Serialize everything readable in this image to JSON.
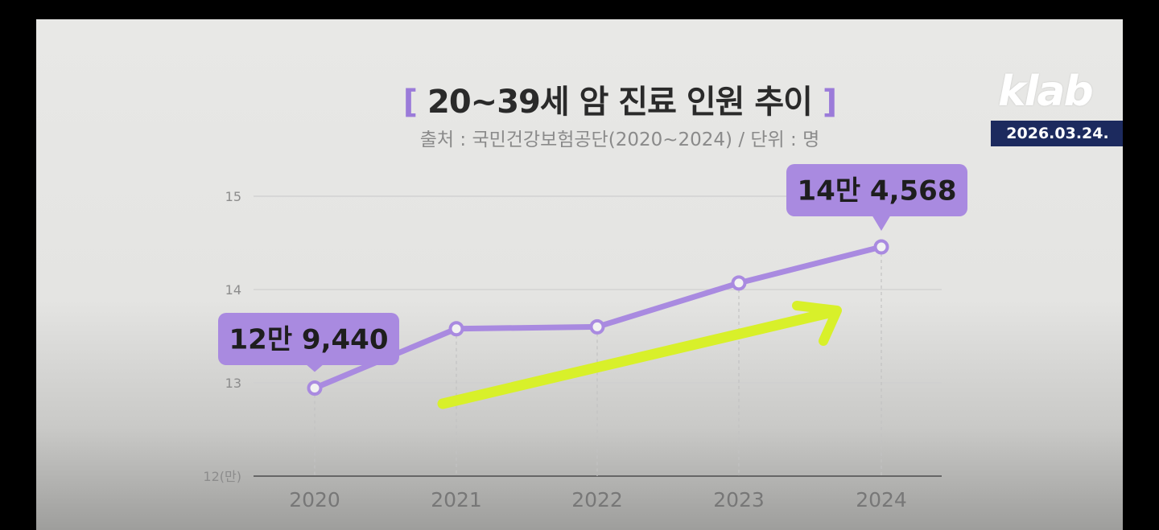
{
  "header": {
    "title": "20~39세 암 진료 인원 추이",
    "title_bracket_left": "[",
    "title_bracket_right": "]",
    "subtitle": "출처 : 국민건강보험공단(2020~2024) / 단위 : 명",
    "logo": "klab",
    "date": "2026.03.24."
  },
  "colors": {
    "line": "#a98ae0",
    "callout": "#a98ae0",
    "arrow": "#d8f02a",
    "date_badge": "#1c2a5e"
  },
  "chart_data": {
    "type": "line",
    "categories": [
      "2020",
      "2021",
      "2022",
      "2023",
      "2024"
    ],
    "values": [
      12.944,
      13.58,
      13.6,
      14.07,
      14.4568
    ],
    "ylim": [
      12,
      15
    ],
    "yticks": [
      "12(만)",
      "13",
      "14",
      "15"
    ],
    "ytick_values": [
      12,
      13,
      14,
      15
    ],
    "grid": true,
    "annotations": [
      {
        "index": 0,
        "text": "12만 9,440"
      },
      {
        "index": 4,
        "text": "14만 4,568"
      }
    ],
    "trend_arrow": true
  }
}
